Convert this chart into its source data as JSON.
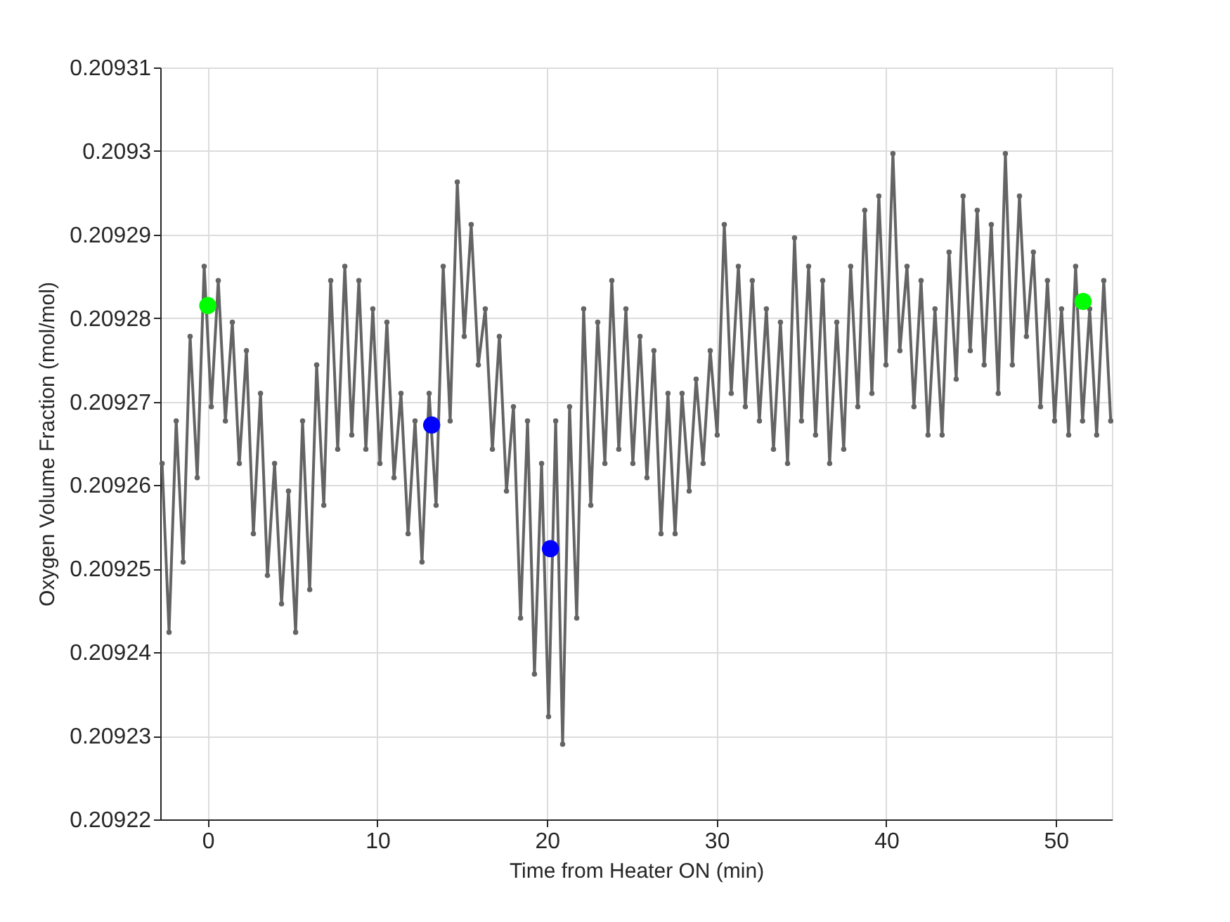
{
  "chart_data": {
    "type": "line",
    "xlabel": "Time from Heater ON (min)",
    "ylabel": "Oxygen Volume Fraction (mol/mol)",
    "xlim": [
      -2.8,
      53.3
    ],
    "xticks": [
      0,
      10,
      20,
      30,
      40,
      50
    ],
    "ylim": [
      0.20922,
      0.20931
    ],
    "yticks": [
      0.20922,
      0.20923,
      0.20924,
      0.20925,
      0.20926,
      0.20927,
      0.20928,
      0.20929,
      0.2093,
      0.20931
    ],
    "grid": true,
    "legend": false,
    "marker": "circle",
    "line_style": "solid",
    "series": [
      {
        "color": "#646464",
        "x": [
          -2.69,
          -2.28,
          -1.86,
          -1.45,
          -1.04,
          -0.62,
          -0.21,
          0.21,
          0.62,
          1.04,
          1.45,
          1.86,
          2.28,
          2.69,
          3.11,
          3.52,
          3.94,
          4.35,
          4.76,
          5.18,
          5.59,
          6.01,
          6.42,
          6.84,
          7.25,
          7.66,
          8.08,
          8.49,
          8.91,
          9.32,
          9.73,
          10.15,
          10.56,
          10.98,
          11.39,
          11.81,
          12.22,
          12.63,
          13.05,
          13.46,
          13.88,
          14.29,
          14.71,
          15.12,
          15.53,
          15.95,
          16.36,
          16.78,
          17.19,
          17.61,
          18.02,
          18.44,
          18.85,
          19.26,
          19.68,
          20.09,
          20.51,
          20.92,
          21.33,
          21.75,
          22.16,
          22.58,
          22.99,
          23.41,
          23.82,
          24.23,
          24.65,
          25.06,
          25.48,
          25.89,
          26.3,
          26.72,
          27.13,
          27.55,
          27.96,
          28.38,
          28.79,
          29.2,
          29.62,
          30.03,
          30.45,
          30.86,
          31.28,
          31.69,
          32.1,
          32.52,
          32.93,
          33.35,
          33.76,
          34.18,
          34.59,
          35.0,
          35.42,
          35.83,
          36.25,
          36.66,
          37.08,
          37.49,
          37.9,
          38.32,
          38.73,
          39.15,
          39.56,
          39.98,
          40.39,
          40.8,
          41.22,
          41.63,
          42.05,
          42.46,
          42.87,
          43.29,
          43.7,
          44.12,
          44.53,
          44.95,
          45.36,
          45.77,
          46.19,
          46.6,
          47.02,
          47.43,
          47.85,
          48.26,
          48.67,
          49.09,
          49.5,
          49.92,
          50.33,
          50.75,
          51.16,
          51.57,
          51.99,
          52.4,
          52.82,
          53.23
        ],
        "values": [
          0.2092626,
          0.2092424,
          0.2092677,
          0.2092508,
          0.2092778,
          0.2092609,
          0.2092862,
          0.2092694,
          0.2092845,
          0.2092677,
          0.2092795,
          0.2092626,
          0.2092761,
          0.2092542,
          0.209271,
          0.2092492,
          0.2092626,
          0.2092458,
          0.2092593,
          0.2092424,
          0.2092677,
          0.2092475,
          0.2092744,
          0.2092576,
          0.2092845,
          0.2092643,
          0.2092862,
          0.209266,
          0.2092845,
          0.2092643,
          0.2092811,
          0.2092626,
          0.2092795,
          0.2092609,
          0.209271,
          0.2092542,
          0.2092677,
          0.2092508,
          0.209271,
          0.2092576,
          0.2092862,
          0.2092677,
          0.2092963,
          0.2092778,
          0.2092912,
          0.2092744,
          0.2092811,
          0.2092643,
          0.2092778,
          0.2092593,
          0.2092694,
          0.2092441,
          0.2092677,
          0.2092374,
          0.2092626,
          0.2092323,
          0.2092677,
          0.209229,
          0.2092694,
          0.2092441,
          0.2092811,
          0.2092576,
          0.2092795,
          0.2092626,
          0.2092845,
          0.2092643,
          0.2092811,
          0.2092626,
          0.2092778,
          0.2092609,
          0.2092761,
          0.2092542,
          0.209271,
          0.2092542,
          0.209271,
          0.2092593,
          0.2092727,
          0.2092626,
          0.2092761,
          0.209266,
          0.2092912,
          0.209271,
          0.2092862,
          0.2092694,
          0.2092845,
          0.2092677,
          0.2092811,
          0.2092643,
          0.2092795,
          0.2092626,
          0.2092896,
          0.2092677,
          0.2092862,
          0.209266,
          0.2092845,
          0.2092626,
          0.2092795,
          0.2092643,
          0.2092862,
          0.2092694,
          0.2092929,
          0.209271,
          0.2092946,
          0.2092744,
          0.2092997,
          0.2092761,
          0.2092862,
          0.2092694,
          0.2092845,
          0.209266,
          0.2092811,
          0.209266,
          0.2092879,
          0.2092727,
          0.2092946,
          0.2092761,
          0.2092929,
          0.2092744,
          0.2092912,
          0.209271,
          0.2092997,
          0.2092744,
          0.2092946,
          0.2092778,
          0.2092879,
          0.2092694,
          0.2092845,
          0.2092677,
          0.2092811,
          0.209266,
          0.2092862,
          0.2092677,
          0.2092811,
          0.209266,
          0.2092845,
          0.2092677
        ]
      },
      {
        "type": "scatter",
        "color": "#00ff00",
        "x": [
          0.0,
          51.6
        ],
        "values": [
          0.2092815,
          0.209282
        ]
      },
      {
        "type": "scatter",
        "color": "#0000ff",
        "x": [
          13.2,
          20.2
        ],
        "values": [
          0.2092672,
          0.2092524
        ]
      }
    ]
  }
}
